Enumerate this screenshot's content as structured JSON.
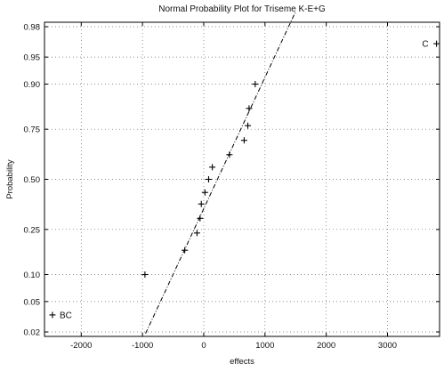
{
  "chart_data": {
    "type": "scatter",
    "title": "Normal Probability Plot for Triseme K-E+G",
    "xlabel": "effects",
    "ylabel": "Probability",
    "xlim": [
      -2600,
      3850
    ],
    "probability_scale": "normal",
    "x_ticks": [
      -2000,
      -1000,
      0,
      1000,
      2000,
      3000
    ],
    "x_tick_labels": [
      "-2000",
      "-1000",
      "0",
      "1000",
      "2000",
      "3000"
    ],
    "y_ticks": [
      0.02,
      0.05,
      0.1,
      0.25,
      0.5,
      0.75,
      0.9,
      0.95,
      0.98
    ],
    "y_tick_labels": [
      "0.02",
      "0.05",
      "0.10",
      "0.25",
      "0.50",
      "0.75",
      "0.90",
      "0.95",
      "0.98"
    ],
    "grid": true,
    "marker": "+",
    "points": [
      {
        "x": -2470,
        "p": 0.034,
        "label": "BC"
      },
      {
        "x": -960,
        "p": 0.1,
        "label": ""
      },
      {
        "x": -310,
        "p": 0.17,
        "label": ""
      },
      {
        "x": -110,
        "p": 0.235,
        "label": ""
      },
      {
        "x": -60,
        "p": 0.3,
        "label": ""
      },
      {
        "x": -40,
        "p": 0.37,
        "label": ""
      },
      {
        "x": 20,
        "p": 0.43,
        "label": ""
      },
      {
        "x": 80,
        "p": 0.5,
        "label": ""
      },
      {
        "x": 140,
        "p": 0.565,
        "label": ""
      },
      {
        "x": 420,
        "p": 0.63,
        "label": ""
      },
      {
        "x": 660,
        "p": 0.7,
        "label": ""
      },
      {
        "x": 720,
        "p": 0.765,
        "label": ""
      },
      {
        "x": 740,
        "p": 0.83,
        "label": ""
      },
      {
        "x": 840,
        "p": 0.9,
        "label": ""
      },
      {
        "x": 3800,
        "p": 0.966,
        "label": "C"
      }
    ],
    "reference_line": {
      "x": [
        -950,
        1500
      ],
      "p": [
        0.019,
        0.988
      ]
    }
  }
}
